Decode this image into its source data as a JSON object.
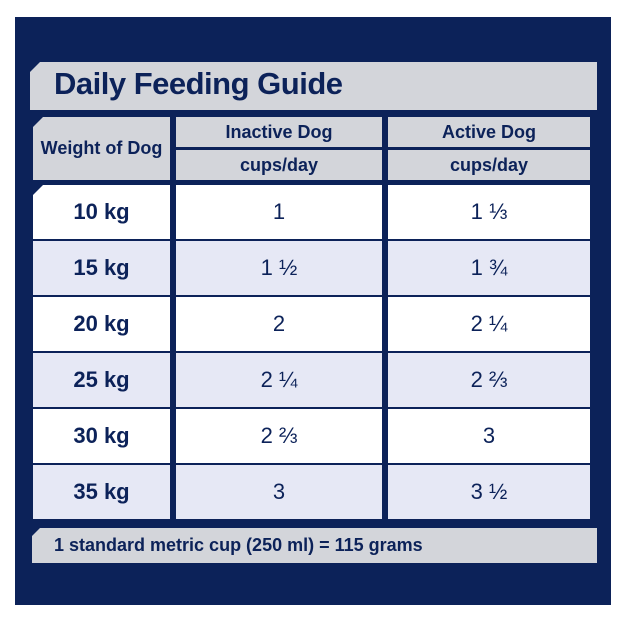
{
  "title": "Daily Feeding Guide",
  "headers": {
    "weight": "Weight of Dog",
    "inactive": "Inactive Dog",
    "active": "Active Dog",
    "inactive_unit": "cups/day",
    "active_unit": "cups/day"
  },
  "rows": [
    {
      "weight": "10 kg",
      "inactive": "1",
      "active": "1 ⅓"
    },
    {
      "weight": "15 kg",
      "inactive": "1 ½",
      "active": "1 ¾"
    },
    {
      "weight": "20 kg",
      "inactive": "2",
      "active": "2 ¼"
    },
    {
      "weight": "25 kg",
      "inactive": "2 ¼",
      "active": "2 ⅔"
    },
    {
      "weight": "30 kg",
      "inactive": "2 ⅔",
      "active": "3"
    },
    {
      "weight": "35 kg",
      "inactive": "3",
      "active": "3 ½"
    }
  ],
  "footer": "1 standard metric cup (250 ml) = 115 grams",
  "colors": {
    "navy": "#0c2259",
    "gray": "#d3d5da",
    "row_alt": "#e6e8f5",
    "row": "#ffffff"
  }
}
